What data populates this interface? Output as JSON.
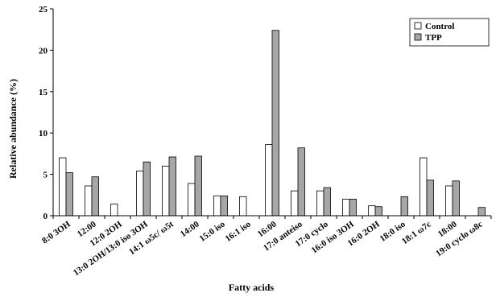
{
  "chart_data": {
    "type": "bar",
    "xlabel": "Fatty acids",
    "ylabel": "Relative abundance (%)",
    "ylim": [
      0,
      25
    ],
    "yticks": [
      0,
      5,
      10,
      15,
      20,
      25
    ],
    "grid": false,
    "legend_position": "top-right",
    "categories": [
      "8:0 3OH",
      "12:00",
      "12:0 2OH",
      "13:0 2OH/13:0 iso 3OH",
      "14:1 ω5c/ ω5t",
      "14:00",
      "15:0 iso",
      "16:1 iso",
      "16:00",
      "17:0 anteiso",
      "17:0 cyclo",
      "16:0 iso 3OH",
      "16:0 2OH",
      "18:0 iso",
      "18:1 ω7c",
      "18:00",
      "19:0 cyclo ω8c"
    ],
    "series": [
      {
        "name": "Control",
        "color": "#ffffff",
        "values": [
          7.0,
          3.6,
          1.4,
          5.4,
          6.0,
          3.9,
          2.4,
          2.3,
          8.6,
          3.0,
          3.0,
          2.0,
          1.2,
          0.0,
          7.0,
          3.6,
          0.0
        ]
      },
      {
        "name": "TPP",
        "color": "#a6a6a6",
        "values": [
          5.2,
          4.7,
          0.0,
          6.5,
          7.1,
          7.2,
          2.4,
          0.0,
          22.4,
          8.2,
          3.4,
          2.0,
          1.1,
          2.3,
          4.3,
          4.2,
          1.0
        ]
      }
    ]
  }
}
